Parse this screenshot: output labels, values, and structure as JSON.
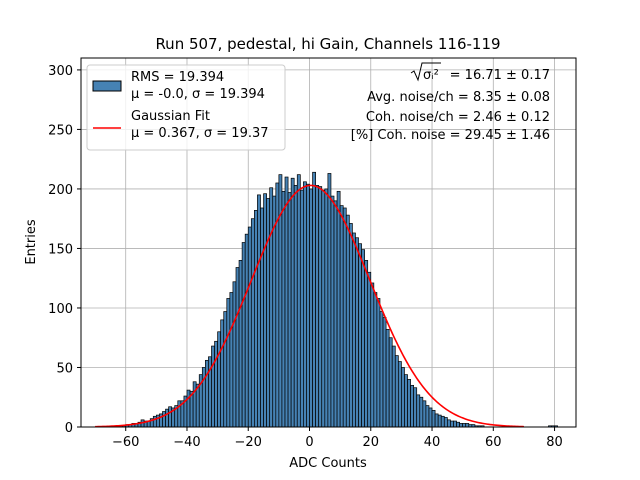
{
  "chart_data": {
    "type": "bar",
    "title": "Run 507, pedestal, hi Gain, Channels 116-119",
    "xlabel": "ADC Counts",
    "ylabel": "Entries",
    "xlim": [
      -74.6,
      87
    ],
    "ylim": [
      0,
      310
    ],
    "xticks": [
      -60,
      -40,
      -20,
      0,
      20,
      40,
      60,
      80
    ],
    "yticks": [
      0,
      50,
      100,
      150,
      200,
      250,
      300
    ],
    "grid": true,
    "colors": {
      "bar": "#4682b4",
      "bar_edge": "#000000",
      "fit": "#ff0000",
      "grid": "#b0b0b0"
    },
    "histogram": {
      "name_line1": "RMS = 19.394",
      "name_line2": "μ = -0.0, σ = 19.394",
      "x": [
        -70,
        -69,
        -68,
        -67,
        -66,
        -65,
        -64,
        -63,
        -62,
        -61,
        -60,
        -59,
        -58,
        -57,
        -56,
        -55,
        -54,
        -53,
        -52,
        -51,
        -50,
        -49,
        -48,
        -47,
        -46,
        -45,
        -44,
        -43,
        -42,
        -41,
        -40,
        -39,
        -38,
        -37,
        -36,
        -35,
        -34,
        -33,
        -32,
        -31,
        -30,
        -29,
        -28,
        -27,
        -26,
        -25,
        -24,
        -23,
        -22,
        -21,
        -20,
        -19,
        -18,
        -17,
        -16,
        -15,
        -14,
        -13,
        -12,
        -11,
        -10,
        -9,
        -8,
        -7,
        -6,
        -5,
        -4,
        -3,
        -2,
        -1,
        0,
        1,
        2,
        3,
        4,
        5,
        6,
        7,
        8,
        9,
        10,
        11,
        12,
        13,
        14,
        15,
        16,
        17,
        18,
        19,
        20,
        21,
        22,
        23,
        24,
        25,
        26,
        27,
        28,
        29,
        30,
        31,
        32,
        33,
        34,
        35,
        36,
        37,
        38,
        39,
        40,
        41,
        42,
        43,
        44,
        45,
        46,
        47,
        48,
        49,
        50,
        51,
        52,
        53,
        54,
        55,
        56,
        57,
        58,
        59,
        60,
        61,
        62,
        63,
        64,
        65,
        66,
        67,
        68,
        69,
        70,
        71,
        72,
        73,
        74,
        75,
        76,
        77,
        78,
        79,
        80,
        81
      ],
      "values": [
        0,
        0,
        0,
        0,
        0,
        0,
        0,
        1,
        1,
        1,
        2,
        2,
        3,
        3,
        4,
        6,
        5,
        5,
        7,
        9,
        10,
        11,
        13,
        15,
        17,
        16,
        18,
        22,
        22,
        26,
        31,
        30,
        38,
        36,
        44,
        50,
        56,
        59,
        68,
        72,
        80,
        90,
        97,
        108,
        113,
        122,
        134,
        140,
        155,
        162,
        168,
        175,
        182,
        195,
        184,
        196,
        192,
        201,
        194,
        205,
        212,
        198,
        210,
        197,
        209,
        203,
        212,
        199,
        206,
        204,
        200,
        214,
        203,
        202,
        199,
        200,
        213,
        194,
        190,
        198,
        186,
        184,
        178,
        171,
        163,
        159,
        154,
        149,
        140,
        130,
        121,
        113,
        108,
        97,
        92,
        82,
        75,
        68,
        60,
        55,
        50,
        44,
        40,
        35,
        33,
        27,
        25,
        22,
        18,
        16,
        14,
        11,
        10,
        9,
        8,
        6,
        5,
        5,
        4,
        3,
        3,
        3,
        2,
        2,
        1,
        1,
        1,
        0,
        0,
        0,
        0,
        0,
        0,
        0,
        0,
        0,
        0,
        0,
        0,
        0,
        0,
        0,
        0,
        0,
        0,
        0,
        0,
        0,
        1,
        1,
        1,
        0
      ]
    },
    "fit": {
      "name_line1": "Gaussian Fit",
      "name_line2": "μ = 0.367, σ = 19.37",
      "mu": 0.367,
      "sigma": 19.37,
      "amplitude": 203,
      "x_range": [
        -70,
        70
      ]
    },
    "legend": {
      "position": "top-left"
    },
    "annotations": [
      "= 16.71 ± 0.17",
      "Avg. noise/ch = 8.35 ± 0.08",
      "Coh. noise/ch = 2.46 ± 0.12",
      "[%] Coh. noise = 29.45 ± 1.46"
    ],
    "annotation_symbol": "σᵢ²"
  }
}
